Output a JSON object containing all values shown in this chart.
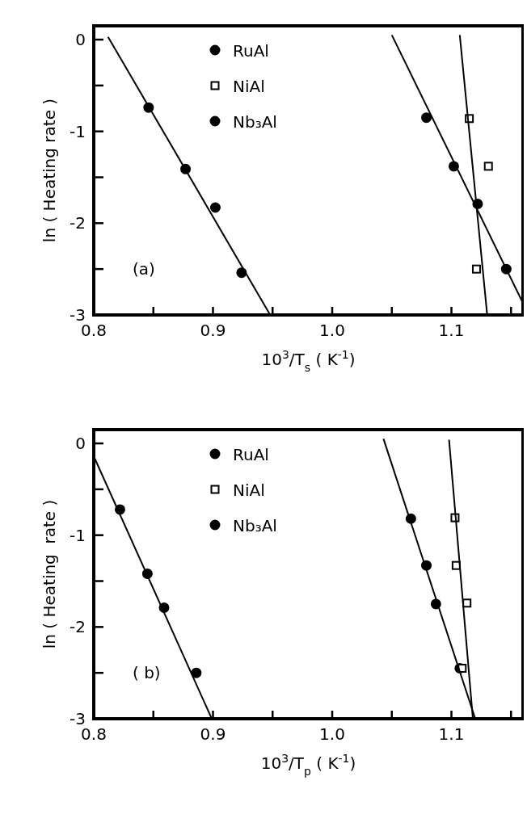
{
  "chart_data": [
    {
      "type": "scatter",
      "xlabel": "10$^{3}$/T$_{s}$ ( K$^{-1}$)",
      "ylabel": "ln ( Heating rate )",
      "annotations": [
        "(a)"
      ],
      "xlim": [
        0.8,
        1.16
      ],
      "ylim": [
        -3,
        0.15
      ],
      "xticks": [
        {
          "value": 0.8,
          "label": "0.8"
        },
        {
          "value": 0.85,
          "label": null
        },
        {
          "value": 0.9,
          "label": "0.9"
        },
        {
          "value": 0.95,
          "label": null
        },
        {
          "value": 1.0,
          "label": "1.0"
        },
        {
          "value": 1.05,
          "label": null
        },
        {
          "value": 1.1,
          "label": "1.1"
        },
        {
          "value": 1.15,
          "label": null
        }
      ],
      "yticks": [
        -3,
        {
          "value": -2.5,
          "label": null
        },
        -2,
        {
          "value": -1.5,
          "label": null
        },
        -1,
        {
          "value": -0.5,
          "label": null
        },
        0
      ],
      "grid": false,
      "legend": "top",
      "series": [
        {
          "name": "RuAl",
          "color": "#000000",
          "marker": "circle",
          "x": [
            1.079,
            1.102,
            1.122,
            1.146
          ],
          "values": [
            -0.85,
            -1.38,
            -1.79,
            -2.5
          ]
        },
        {
          "name": "NiAl",
          "color": "#000000",
          "marker": "square",
          "x": [
            1.115,
            1.131,
            1.121
          ],
          "values": [
            -0.86,
            -1.38,
            -2.5
          ]
        },
        {
          "name": "Nb₃Al",
          "color": "#000000",
          "marker": "circle",
          "x": [
            0.846,
            0.877,
            0.902,
            0.924
          ],
          "values": [
            -0.74,
            -1.41,
            -1.83,
            -2.54
          ]
        },
        {
          "type": "line",
          "color": "#000000",
          "x": [
            0.812,
            0.948
          ],
          "values": [
            0.03,
            -3
          ]
        },
        {
          "type": "line",
          "color": "#000000",
          "x": [
            1.05,
            1.16
          ],
          "values": [
            0.05,
            -2.87
          ]
        },
        {
          "type": "line",
          "color": "#000000",
          "x": [
            1.107,
            1.13
          ],
          "values": [
            0.05,
            -3
          ]
        }
      ]
    },
    {
      "type": "scatter",
      "xlabel": "10$^{3}$/T$_{p}$ ( K$^{-1}$)",
      "ylabel": "ln ( Heating  rate )",
      "annotations": [
        "( b)"
      ],
      "xlim": [
        0.8,
        1.16
      ],
      "ylim": [
        -3,
        0.15
      ],
      "xticks": [
        {
          "value": 0.8,
          "label": "0.8"
        },
        {
          "value": 0.85,
          "label": null
        },
        {
          "value": 0.9,
          "label": "0.9"
        },
        {
          "value": 0.95,
          "label": null
        },
        {
          "value": 1.0,
          "label": "1.0"
        },
        {
          "value": 1.05,
          "label": null
        },
        {
          "value": 1.1,
          "label": "1.1"
        },
        {
          "value": 1.15,
          "label": null
        }
      ],
      "yticks": [
        -3,
        {
          "value": -2.5,
          "label": null
        },
        -2,
        {
          "value": -1.5,
          "label": null
        },
        -1,
        {
          "value": -0.5,
          "label": null
        },
        0
      ],
      "grid": false,
      "legend": "top",
      "series": [
        {
          "name": "RuAl",
          "color": "#000000",
          "marker": "circle",
          "x": [
            1.066,
            1.079,
            1.087,
            1.107
          ],
          "values": [
            -0.82,
            -1.33,
            -1.75,
            -2.45
          ]
        },
        {
          "name": "NiAl",
          "color": "#000000",
          "marker": "square",
          "x": [
            1.103,
            1.104,
            1.113,
            1.109
          ],
          "values": [
            -0.81,
            -1.33,
            -1.74,
            -2.45
          ]
        },
        {
          "name": "Nb₃Al",
          "color": "#000000",
          "marker": "circle",
          "x": [
            0.822,
            0.845,
            0.859,
            0.886
          ],
          "values": [
            -0.72,
            -1.42,
            -1.79,
            -2.5
          ]
        },
        {
          "type": "line",
          "color": "#000000",
          "x": [
            0.8,
            0.899
          ],
          "values": [
            -0.14,
            -3
          ]
        },
        {
          "type": "line",
          "color": "#000000",
          "x": [
            1.043,
            1.12
          ],
          "values": [
            0.05,
            -3
          ]
        },
        {
          "type": "line",
          "color": "#000000",
          "x": [
            1.098,
            1.118
          ],
          "values": [
            0.04,
            -3
          ]
        }
      ]
    }
  ]
}
